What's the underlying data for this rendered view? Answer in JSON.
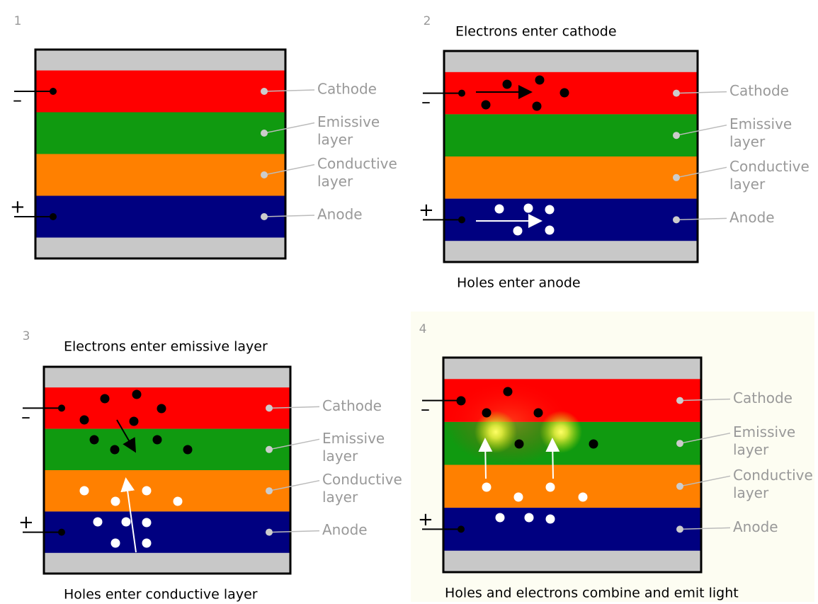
{
  "panels": [
    {
      "number": "1",
      "minus": "–",
      "plus": "+",
      "layers": [
        [
          "Cathode"
        ],
        [
          "Emissive",
          "layer"
        ],
        [
          "Conductive",
          "layer"
        ],
        [
          "Anode"
        ]
      ]
    },
    {
      "number": "2",
      "top_caption": "Electrons enter cathode",
      "bottom_caption": "Holes enter anode",
      "minus": "–",
      "plus": "+",
      "layers": [
        [
          "Cathode"
        ],
        [
          "Emissive",
          "layer"
        ],
        [
          "Conductive",
          "layer"
        ],
        [
          "Anode"
        ]
      ]
    },
    {
      "number": "3",
      "top_caption": "Electrons enter emissive layer",
      "bottom_caption": "Holes enter conductive layer",
      "minus": "–",
      "plus": "+",
      "layers": [
        [
          "Cathode"
        ],
        [
          "Emissive",
          "layer"
        ],
        [
          "Conductive",
          "layer"
        ],
        [
          "Anode"
        ]
      ]
    },
    {
      "number": "4",
      "bottom_caption": "Holes and electrons combine and emit light",
      "minus": "–",
      "plus": "+",
      "layers": [
        [
          "Cathode"
        ],
        [
          "Emissive",
          "layer"
        ],
        [
          "Conductive",
          "layer"
        ],
        [
          "Anode"
        ]
      ]
    }
  ]
}
